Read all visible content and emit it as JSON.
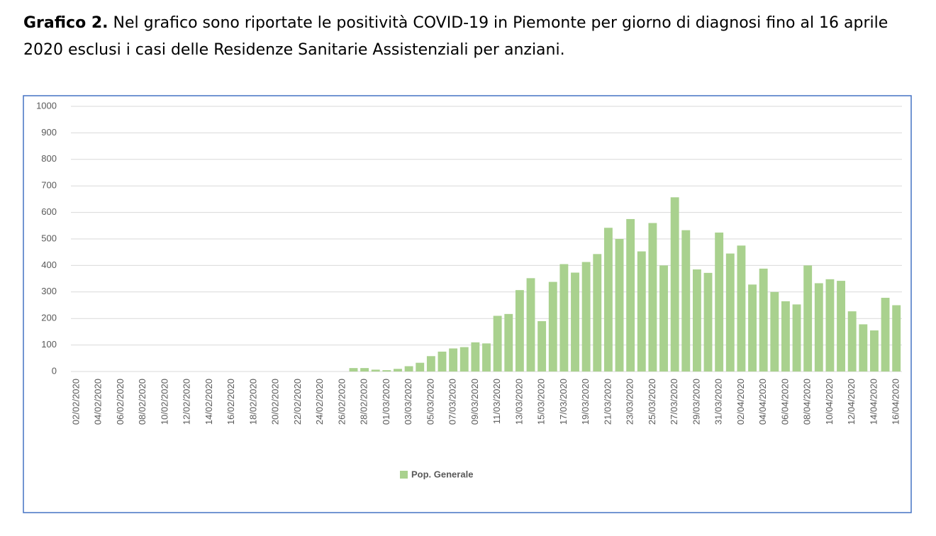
{
  "caption": {
    "label": "Grafico 2.",
    "text": "Nel grafico sono riportate le positività COVID-19 in Piemonte per giorno di diagnosi fino al 16 aprile 2020 esclusi i casi delle Residenze Sanitarie Assistenziali per anziani."
  },
  "chart_data": {
    "type": "bar",
    "categories": [
      "02/02/2020",
      null,
      "04/02/2020",
      null,
      "06/02/2020",
      null,
      "08/02/2020",
      null,
      "10/02/2020",
      null,
      "12/02/2020",
      null,
      "14/02/2020",
      null,
      "16/02/2020",
      null,
      "18/02/2020",
      null,
      "20/02/2020",
      null,
      "22/02/2020",
      null,
      "24/02/2020",
      null,
      "26/02/2020",
      null,
      "28/02/2020",
      null,
      "01/03/2020",
      null,
      "03/03/2020",
      null,
      "05/03/2020",
      null,
      "07/03/2020",
      null,
      "09/03/2020",
      null,
      "11/03/2020",
      null,
      "13/03/2020",
      null,
      "15/03/2020",
      null,
      "17/03/2020",
      null,
      "19/03/2020",
      null,
      "21/03/2020",
      null,
      "23/03/2020",
      null,
      "25/03/2020",
      null,
      "27/03/2020",
      null,
      "29/03/2020",
      null,
      "31/03/2020",
      null,
      "02/04/2020",
      null,
      "04/04/2020",
      null,
      "06/04/2020",
      null,
      "08/04/2020",
      null,
      "10/04/2020",
      null,
      "12/04/2020",
      null,
      "14/04/2020",
      null,
      "16/04/2020"
    ],
    "series": [
      {
        "name": "Pop. Generale",
        "color": "#a9d18e",
        "values": [
          0,
          0,
          0,
          0,
          0,
          0,
          0,
          0,
          0,
          0,
          0,
          0,
          0,
          0,
          0,
          0,
          0,
          0,
          0,
          0,
          0,
          0,
          0,
          0,
          0,
          13,
          13,
          7,
          5,
          10,
          20,
          33,
          58,
          75,
          87,
          92,
          110,
          106,
          210,
          217,
          307,
          352,
          190,
          338,
          405,
          373,
          413,
          443,
          542,
          500,
          575,
          453,
          560,
          400,
          657,
          533,
          385,
          372,
          524,
          445,
          475,
          328,
          388,
          300,
          265,
          253,
          400,
          333,
          348,
          342,
          227,
          178,
          155,
          278,
          250
        ]
      }
    ],
    "ylim": [
      0,
      1000
    ],
    "yticks": [
      0,
      100,
      200,
      300,
      400,
      500,
      600,
      700,
      800,
      900,
      1000
    ],
    "grid": true,
    "legend": "bottom"
  }
}
